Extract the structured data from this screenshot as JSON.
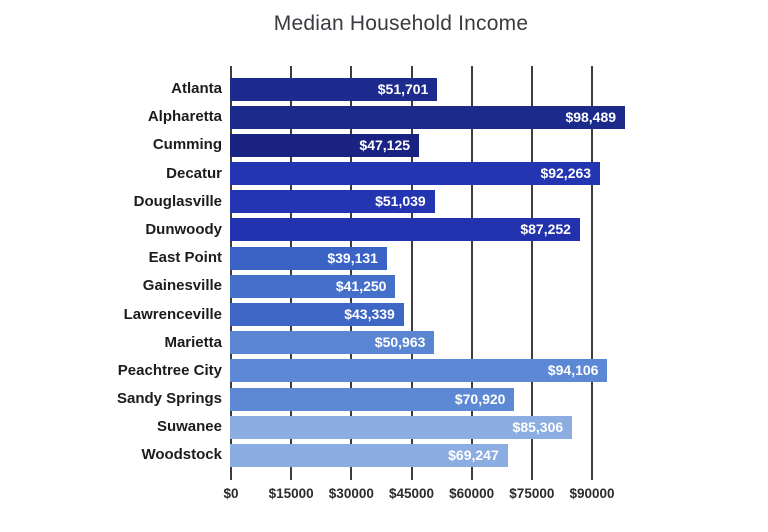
{
  "chart_data": {
    "type": "bar",
    "orientation": "horizontal",
    "title": "Median Household Income",
    "xlabel": "",
    "ylabel": "",
    "xlim": [
      0,
      105000
    ],
    "grid": true,
    "gridline_color": "#3d3d3d",
    "background_color": "#ffffff",
    "value_label_color": "#ffffff",
    "categories": [
      "Atlanta",
      "Alpharetta",
      "Cumming",
      "Decatur",
      "Douglasville",
      "Dunwoody",
      "East Point",
      "Gainesville",
      "Lawrenceville",
      "Marietta",
      "Peachtree City",
      "Sandy Springs",
      "Suwanee",
      "Woodstock"
    ],
    "values": [
      51701,
      98489,
      47125,
      92263,
      51039,
      87252,
      39131,
      41250,
      43339,
      50963,
      94106,
      70920,
      85306,
      69247
    ],
    "value_labels": [
      "$51,701",
      "$98,489",
      "$47,125",
      "$92,263",
      "$51,039",
      "$87,252",
      "$39,131",
      "$41,250",
      "$43,339",
      "$50,963",
      "$94,106",
      "$70,920",
      "$85,306",
      "$69,247"
    ],
    "bar_colors": [
      "#1d2b8e",
      "#1c2a8b",
      "#1a2382",
      "#2435b2",
      "#2435b2",
      "#2232ae",
      "#3b63c6",
      "#4470ca",
      "#3e66c4",
      "#5a85d3",
      "#5c88d6",
      "#5c88d4",
      "#8bade1",
      "#8bade1"
    ],
    "x_ticks": [
      {
        "label": "$0",
        "value": 0
      },
      {
        "label": "$15000",
        "value": 15000
      },
      {
        "label": "$30000",
        "value": 30000
      },
      {
        "label": "$45000",
        "value": 45000
      },
      {
        "label": "$60000",
        "value": 60000
      },
      {
        "label": "$75000",
        "value": 75000
      },
      {
        "label": "$90000",
        "value": 90000
      }
    ]
  }
}
